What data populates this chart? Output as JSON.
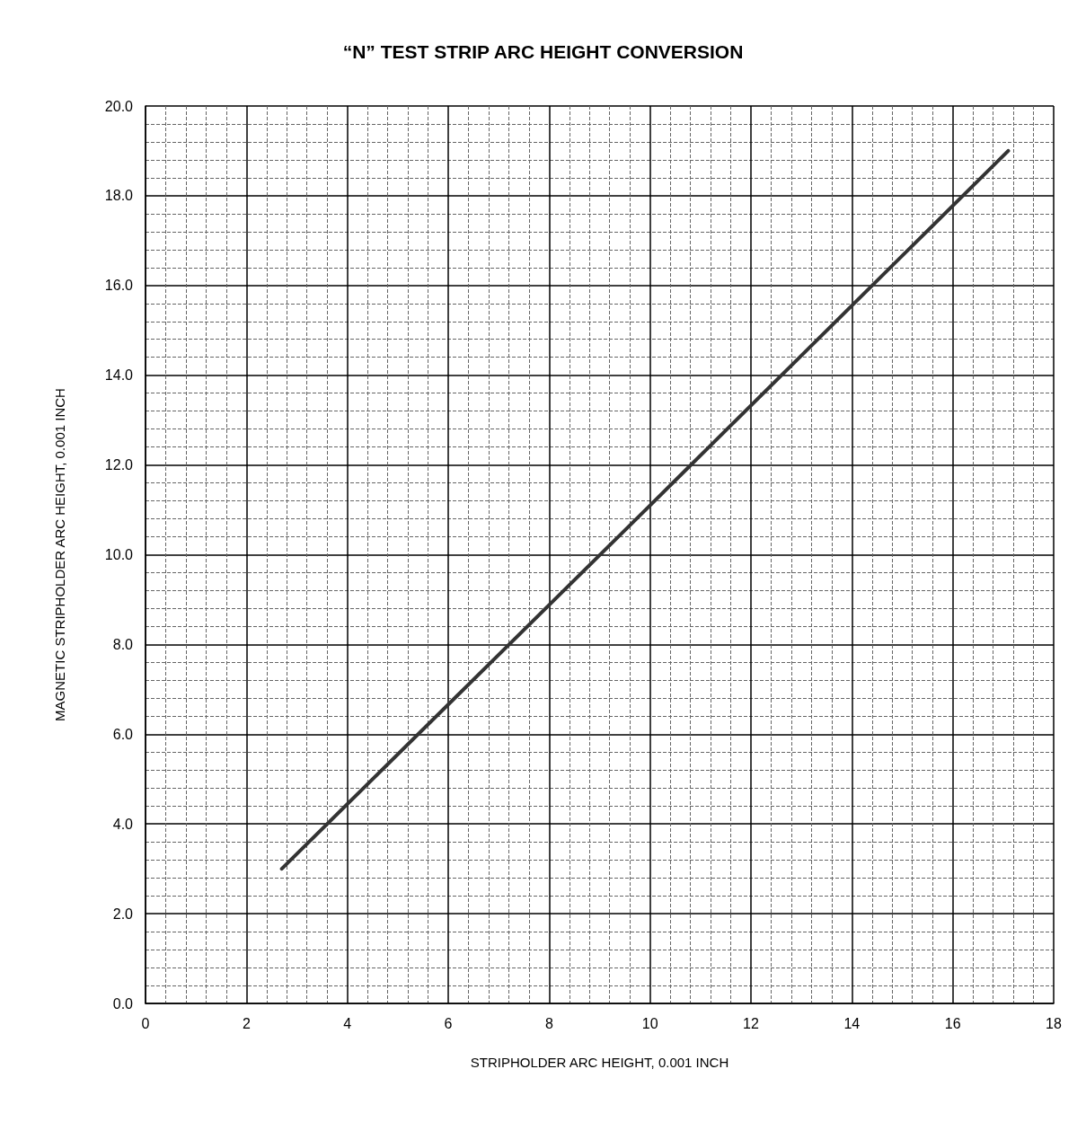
{
  "chart_data": {
    "type": "line",
    "title": "“N” TEST STRIP ARC HEIGHT CONVERSION",
    "xlabel": "STRIPHOLDER ARC HEIGHT, 0.001 INCH",
    "ylabel": "MAGNETIC STRIPHOLDER ARC HEIGHT, 0.001 INCH",
    "series": [
      {
        "color": "#333333",
        "x": [
          2.7,
          10.0,
          17.1
        ],
        "values": [
          3.0,
          11.1,
          19.0
        ]
      }
    ],
    "xlim": [
      0,
      18
    ],
    "xticks": [
      0,
      2,
      4,
      6,
      8,
      10,
      12,
      14,
      16,
      18
    ],
    "ylim": [
      0,
      20
    ],
    "yticks": [
      {
        "value": 0,
        "label": "0.0"
      },
      {
        "value": 2,
        "label": "2.0"
      },
      {
        "value": 4,
        "label": "4.0"
      },
      {
        "value": 6,
        "label": "6.0"
      },
      {
        "value": 8,
        "label": "8.0"
      },
      {
        "value": 10,
        "label": "10.0"
      },
      {
        "value": 12,
        "label": "12.0"
      },
      {
        "value": 14,
        "label": "14.0"
      },
      {
        "value": 16,
        "label": "16.0"
      },
      {
        "value": 18,
        "label": "18.0"
      },
      {
        "value": 20,
        "label": "20.0"
      }
    ],
    "grid": true,
    "marker": "none",
    "line_style": "solid"
  }
}
